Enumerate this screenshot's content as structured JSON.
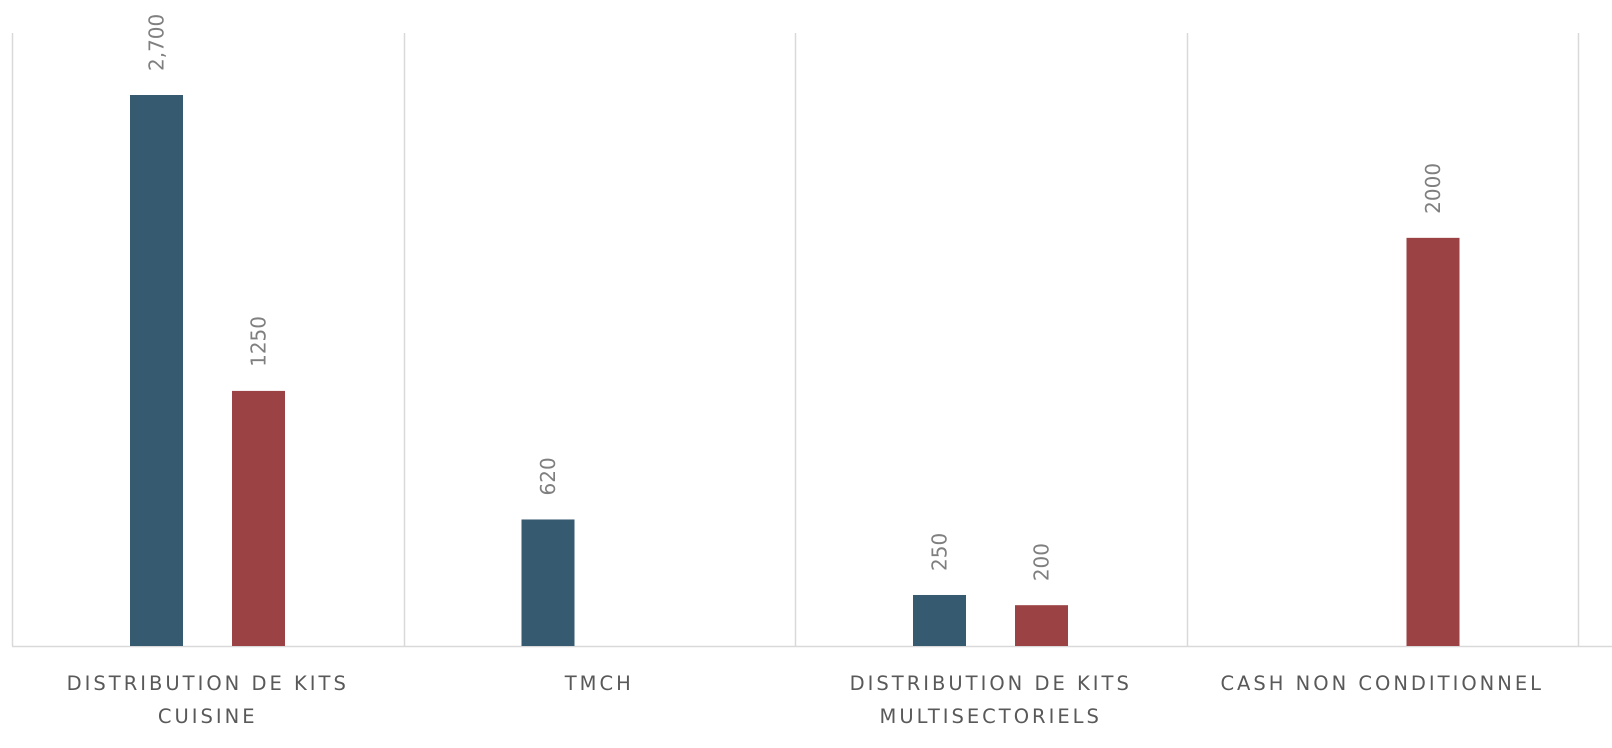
{
  "chart_data": {
    "type": "bar",
    "categories": [
      [
        "DISTRIBUTION DE KITS",
        "CUISINE"
      ],
      [
        "TMCH"
      ],
      [
        "DISTRIBUTION DE KITS",
        "MULTISECTORIELS"
      ],
      [
        "CASH NON CONDITIONNEL"
      ]
    ],
    "series": [
      {
        "color": "#365a70",
        "values": [
          2700,
          620,
          250,
          null
        ],
        "labels": [
          "2,700",
          "620",
          "250",
          ""
        ]
      },
      {
        "color": "#9b4245",
        "values": [
          1250,
          null,
          200,
          2000
        ],
        "labels": [
          "1250",
          "",
          "200",
          "2000"
        ]
      }
    ],
    "ylim": [
      0,
      3000
    ],
    "grid": "vertical separators between categories",
    "legend": "none",
    "colors": {
      "gridline": "#d9d9d9",
      "axis": "#d9d9d9",
      "data_label": "#7f7f7f",
      "category_label": "#595959"
    }
  }
}
